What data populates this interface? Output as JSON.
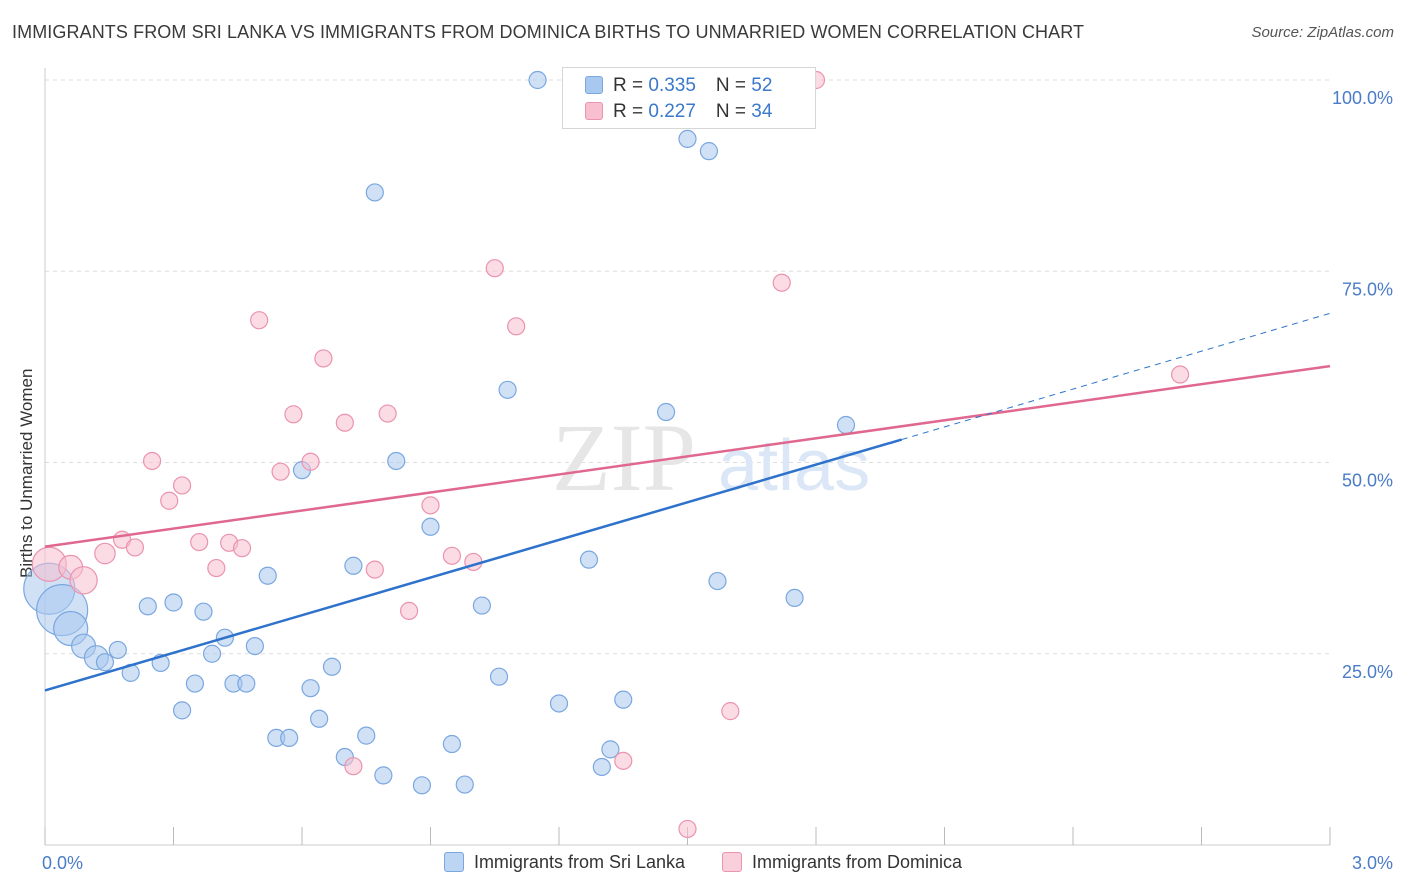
{
  "title": "IMMIGRANTS FROM SRI LANKA VS IMMIGRANTS FROM DOMINICA BIRTHS TO UNMARRIED WOMEN CORRELATION CHART",
  "source": "Source: ZipAtlas.com",
  "watermark": {
    "part1": "ZIP",
    "part2": "atlas"
  },
  "legend": {
    "rows": [
      {
        "r_label": "R = ",
        "r_value": "0.335",
        "n_label": "N = ",
        "n_value": "52"
      },
      {
        "r_label": "R = ",
        "r_value": "0.227",
        "n_label": "N = ",
        "n_value": "34"
      }
    ]
  },
  "bottom_legend": [
    "Immigrants from Sri Lanka",
    "Immigrants from Dominica"
  ],
  "colors": {
    "blue_fill": "#a9c8ef",
    "blue_stroke": "#7aa7e0",
    "blue_line": "#2e72cc",
    "pink_fill": "#f7bfd0",
    "pink_stroke": "#eb93af",
    "pink_line": "#e0688f",
    "tick": "#4a7cc7"
  },
  "chart_data": {
    "type": "scatter",
    "title": "IMMIGRANTS FROM SRI LANKA VS IMMIGRANTS FROM DOMINICA BIRTHS TO UNMARRIED WOMEN CORRELATION CHART",
    "xlabel": "",
    "ylabel": "Births to Unmarried Women",
    "xlim": [
      0,
      3.0
    ],
    "ylim": [
      0,
      100
    ],
    "x_ticks": [
      "0.0%",
      "3.0%"
    ],
    "y_ticks": [
      "25.0%",
      "50.0%",
      "75.0%",
      "100.0%"
    ],
    "y_tick_values": [
      25,
      50,
      75,
      100
    ],
    "grid": true,
    "legend_position": "top-center",
    "series": [
      {
        "name": "Immigrants from Sri Lanka",
        "color": "blue",
        "R": 0.335,
        "N": 52,
        "trend": {
          "x0": 0.0,
          "y0": 20.2,
          "x1": 2.0,
          "y1": 53.0,
          "dashed_to_x": 3.0,
          "dashed_to_y": 69.5
        },
        "points": [
          [
            0.01,
            33.5,
            3
          ],
          [
            0.04,
            30.7,
            3
          ],
          [
            0.06,
            28.3,
            2
          ],
          [
            0.09,
            26.0,
            1.4
          ],
          [
            0.12,
            24.5,
            1.4
          ],
          [
            0.14,
            23.9,
            1
          ],
          [
            0.17,
            25.5,
            1
          ],
          [
            0.2,
            22.5,
            1
          ],
          [
            0.24,
            31.2,
            1
          ],
          [
            0.27,
            23.8,
            1
          ],
          [
            0.3,
            31.7,
            1
          ],
          [
            0.32,
            17.6,
            1
          ],
          [
            0.35,
            21.1,
            1
          ],
          [
            0.37,
            30.5,
            1
          ],
          [
            0.39,
            25.0,
            1
          ],
          [
            0.42,
            27.1,
            1
          ],
          [
            0.44,
            21.1,
            1
          ],
          [
            0.47,
            21.1,
            1
          ],
          [
            0.49,
            26.0,
            1
          ],
          [
            0.52,
            35.2,
            1
          ],
          [
            0.54,
            14.0,
            1
          ],
          [
            0.57,
            14.0,
            1
          ],
          [
            0.6,
            49.0,
            1
          ],
          [
            0.62,
            20.5,
            1
          ],
          [
            0.64,
            16.5,
            1
          ],
          [
            0.67,
            23.3,
            1
          ],
          [
            0.7,
            11.5,
            1
          ],
          [
            0.72,
            36.5,
            1
          ],
          [
            0.75,
            14.3,
            1
          ],
          [
            0.77,
            85.3,
            1
          ],
          [
            0.79,
            9.1,
            1
          ],
          [
            0.82,
            50.2,
            1
          ],
          [
            0.88,
            7.8,
            1
          ],
          [
            0.9,
            41.6,
            1
          ],
          [
            0.95,
            13.2,
            1
          ],
          [
            0.98,
            7.9,
            1
          ],
          [
            1.02,
            31.3,
            1
          ],
          [
            1.06,
            22.0,
            1
          ],
          [
            1.08,
            59.5,
            1
          ],
          [
            1.2,
            18.5,
            1
          ],
          [
            1.15,
            100.0,
            1
          ],
          [
            1.27,
            37.3,
            1
          ],
          [
            1.3,
            10.2,
            1
          ],
          [
            1.32,
            12.5,
            1
          ],
          [
            1.35,
            19.0,
            1
          ],
          [
            1.45,
            56.6,
            1
          ],
          [
            1.5,
            92.3,
            1
          ],
          [
            1.55,
            90.7,
            1
          ],
          [
            1.57,
            34.5,
            1
          ],
          [
            1.75,
            32.3,
            1
          ],
          [
            1.87,
            54.9,
            1
          ],
          [
            1.82,
            52.0,
            0
          ]
        ]
      },
      {
        "name": "Immigrants from Dominica",
        "color": "pink",
        "R": 0.227,
        "N": 34,
        "trend": {
          "x0": 0.0,
          "y0": 39.0,
          "x1": 3.0,
          "y1": 62.6
        },
        "points": [
          [
            0.01,
            36.7,
            2
          ],
          [
            0.06,
            36.3,
            1.4
          ],
          [
            0.09,
            34.6,
            1.6
          ],
          [
            0.14,
            38.1,
            1.2
          ],
          [
            0.18,
            39.9,
            1
          ],
          [
            0.21,
            38.9,
            1
          ],
          [
            0.25,
            50.2,
            1
          ],
          [
            0.29,
            45.0,
            1
          ],
          [
            0.32,
            47.0,
            1
          ],
          [
            0.36,
            39.6,
            1
          ],
          [
            0.4,
            36.2,
            1
          ],
          [
            0.43,
            39.5,
            1
          ],
          [
            0.46,
            38.8,
            1
          ],
          [
            0.5,
            68.6,
            1
          ],
          [
            0.55,
            48.8,
            1
          ],
          [
            0.58,
            56.3,
            1
          ],
          [
            0.62,
            50.1,
            1
          ],
          [
            0.65,
            63.6,
            1
          ],
          [
            0.7,
            55.2,
            1
          ],
          [
            0.72,
            10.3,
            1
          ],
          [
            0.77,
            36.0,
            1
          ],
          [
            0.8,
            56.4,
            1
          ],
          [
            0.85,
            30.6,
            1
          ],
          [
            0.9,
            44.4,
            1
          ],
          [
            0.95,
            37.8,
            1
          ],
          [
            1.0,
            37.0,
            1
          ],
          [
            1.05,
            75.4,
            1
          ],
          [
            1.1,
            67.8,
            1
          ],
          [
            1.35,
            11.0,
            1
          ],
          [
            1.5,
            2.1,
            1
          ],
          [
            1.6,
            17.5,
            1
          ],
          [
            1.72,
            73.5,
            1
          ],
          [
            1.8,
            100.0,
            1
          ],
          [
            2.65,
            61.5,
            1
          ]
        ]
      }
    ]
  }
}
